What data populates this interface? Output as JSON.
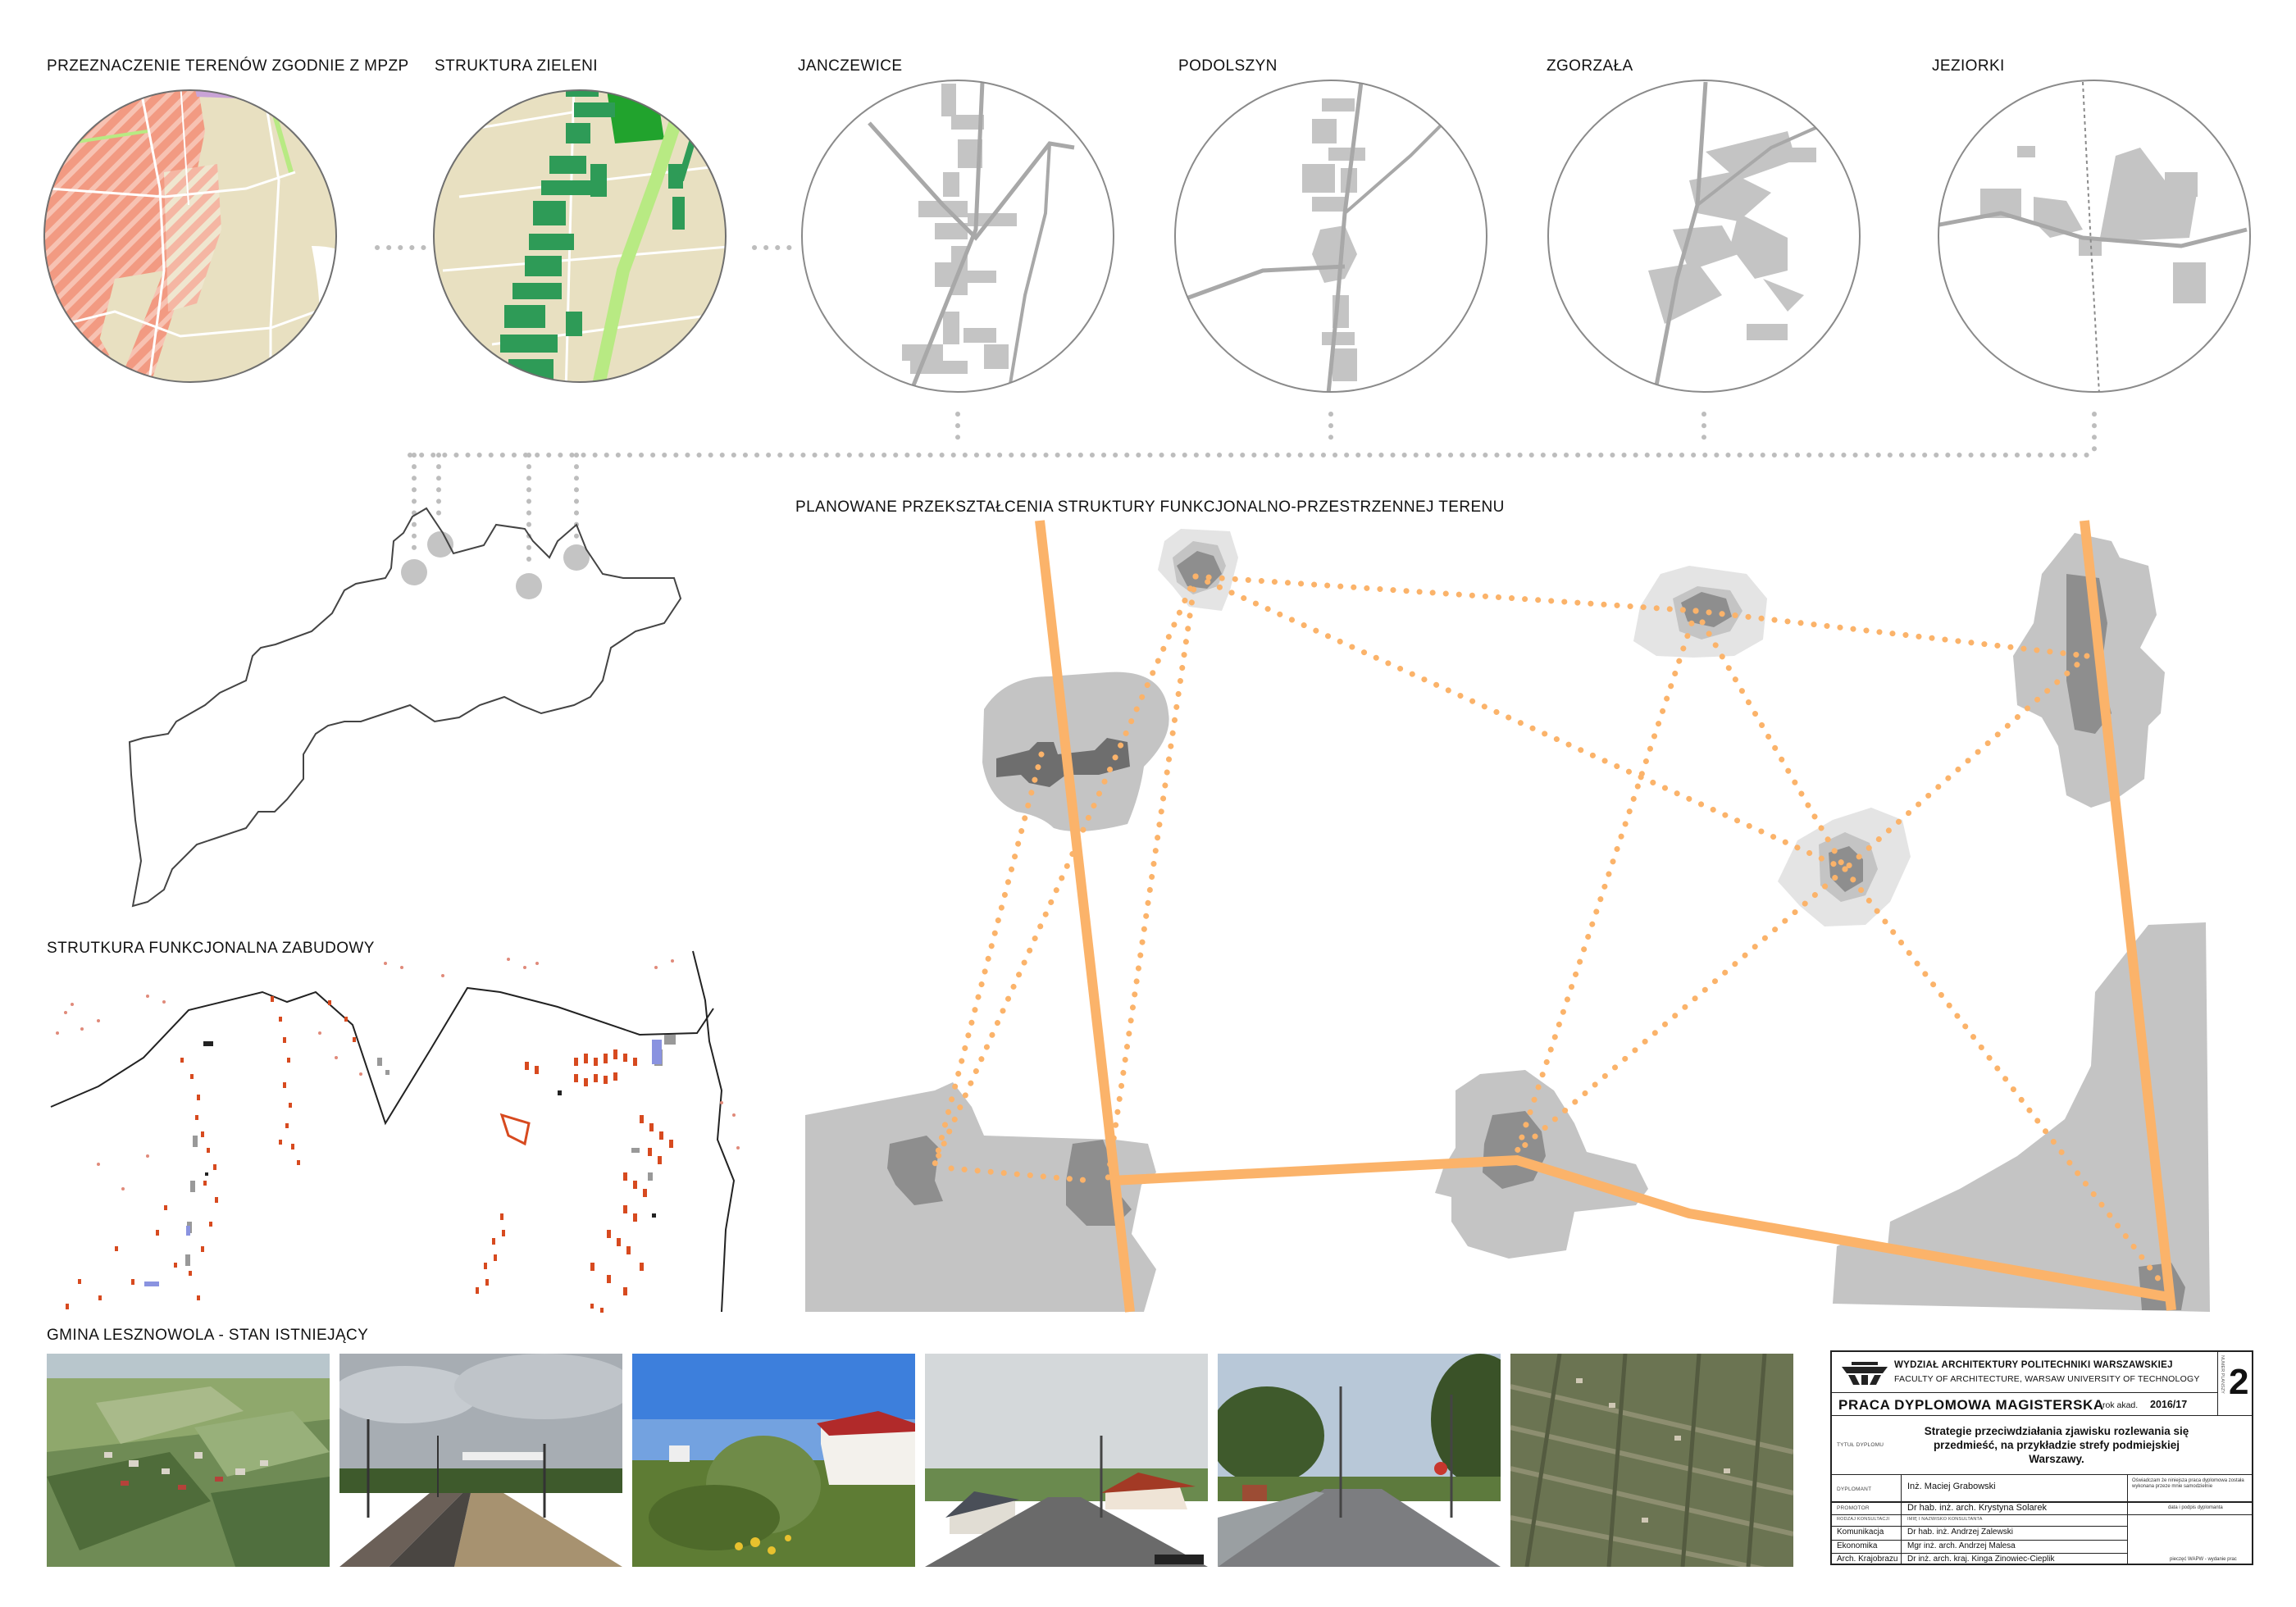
{
  "labels": {
    "mpzp": "PRZEZNACZENIE TERENÓW ZGODNIE Z MPZP",
    "zieleni": "STRUKTURA ZIELENI",
    "janczewice": "JANCZEWICE",
    "podolszyn": "PODOLSZYN",
    "zgorzala": "ZGORZAŁA",
    "jeziorki": "JEZIORKI",
    "planowane": "PLANOWANE PRZEKSZTAŁCENIA STRUKTURY FUNKCJONALNO-PRZESTRZENNEJ TERENU",
    "funkcjonalna": "STRUTKURA FUNKCJONALNA ZABUDOWY",
    "gmina": "GMINA LESZNOWOLA - STAN ISTNIEJĄCY"
  },
  "titleblock": {
    "faculty_pl": "WYDZIAŁ ARCHITEKTURY POLITECHNIKI WARSZAWSKIEJ",
    "faculty_en": "FACULTY OF ARCHITECTURE, WARSAW UNIVERSITY OF TECHNOLOGY",
    "sheet_label": "NUMER PLANSZY",
    "sheet_number": "2",
    "thesis_type": "PRACA DYPLOMOWA MAGISTERSKA",
    "year_label": "rok akad.",
    "year_value": "2016/17",
    "title_label": "TYTUŁ DYPLOMU",
    "title": "Strategie przeciwdziałania zjawisku rozlewania się przedmieść, na przykładzie strefy podmiejskiej Warszawy.",
    "author_label": "DYPLOMANT",
    "author": "Inż. Maciej Grabowski",
    "promoter_label": "PROMOTOR",
    "promoter": "Dr hab. inż. arch. Krystyna Solarek",
    "consult_label": "RODZAJ KONSULTACJI",
    "consult_name_label": "IMIĘ I NAZWISKO KONSULTANTA",
    "consultations": [
      {
        "type": "Komunikacja",
        "name": "Dr hab. inż. Andrzej Zalewski"
      },
      {
        "type": "Ekonomika",
        "name": "Mgr inż. arch. Andrzej Malesa"
      },
      {
        "type": "Arch. Krajobrazu",
        "name": "Dr inż. arch. kraj. Kinga Zinowiec-Cieplik"
      }
    ],
    "note": "Oświadczam że niniejsza praca dyplomowa została wykonana przeze mnie samodzielnie",
    "date_sign": "data i podpis dyplomanta",
    "stamp": "pieczęć WAPW - wydanie prac"
  },
  "colors": {
    "orange": "#fbb36a",
    "gray_dark": "#8e8e8e",
    "gray_mid": "#c4c4c4",
    "gray_light": "#e4e4e4",
    "beige": "#e8e0c1",
    "salmon": "#f29a82",
    "green_dark": "#2e9b57",
    "green_light": "#b8ea83"
  }
}
